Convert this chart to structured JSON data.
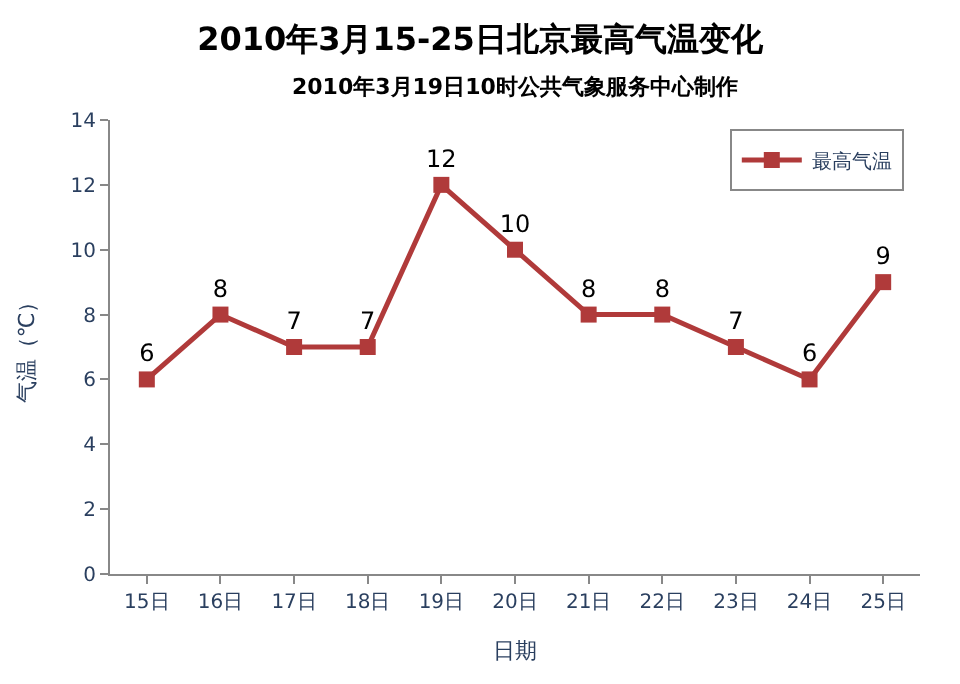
{
  "chart_data": {
    "type": "line",
    "title": "2010年3月15-25日北京最高气温变化",
    "subtitle": "2010年3月19日10时公共气象服务中心制作",
    "xlabel": "日期",
    "ylabel": "气温（℃）",
    "categories": [
      "15日",
      "16日",
      "17日",
      "18日",
      "19日",
      "20日",
      "21日",
      "22日",
      "23日",
      "24日",
      "25日"
    ],
    "series": [
      {
        "name": "最高气温",
        "color": "#b03a3a",
        "values": [
          6,
          8,
          7,
          7,
          12,
          10,
          8,
          8,
          7,
          6,
          9
        ]
      }
    ],
    "ylim": [
      0,
      14
    ],
    "yticks": [
      0,
      2,
      4,
      6,
      8,
      10,
      12,
      14
    ],
    "grid": false,
    "legend": "top right",
    "marker": "square",
    "line_style": "solid",
    "data_labels": true
  }
}
